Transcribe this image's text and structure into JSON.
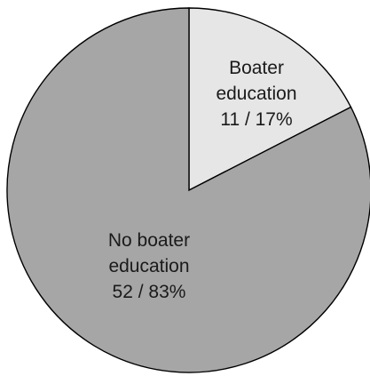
{
  "chart_data": {
    "type": "pie",
    "slices": [
      {
        "name": "Boater education",
        "count": 11,
        "percent": 17,
        "label_lines": [
          "Boater",
          "education",
          "11 / 17%"
        ],
        "color": "#e6e6e6"
      },
      {
        "name": "No boater education",
        "count": 52,
        "percent": 83,
        "label_lines": [
          "No boater",
          "education",
          "52 / 83%"
        ],
        "color": "#a6a6a6"
      }
    ],
    "start_angle_deg": 0,
    "direction": "clockwise",
    "legend": "none",
    "outline_color": "#000000"
  }
}
